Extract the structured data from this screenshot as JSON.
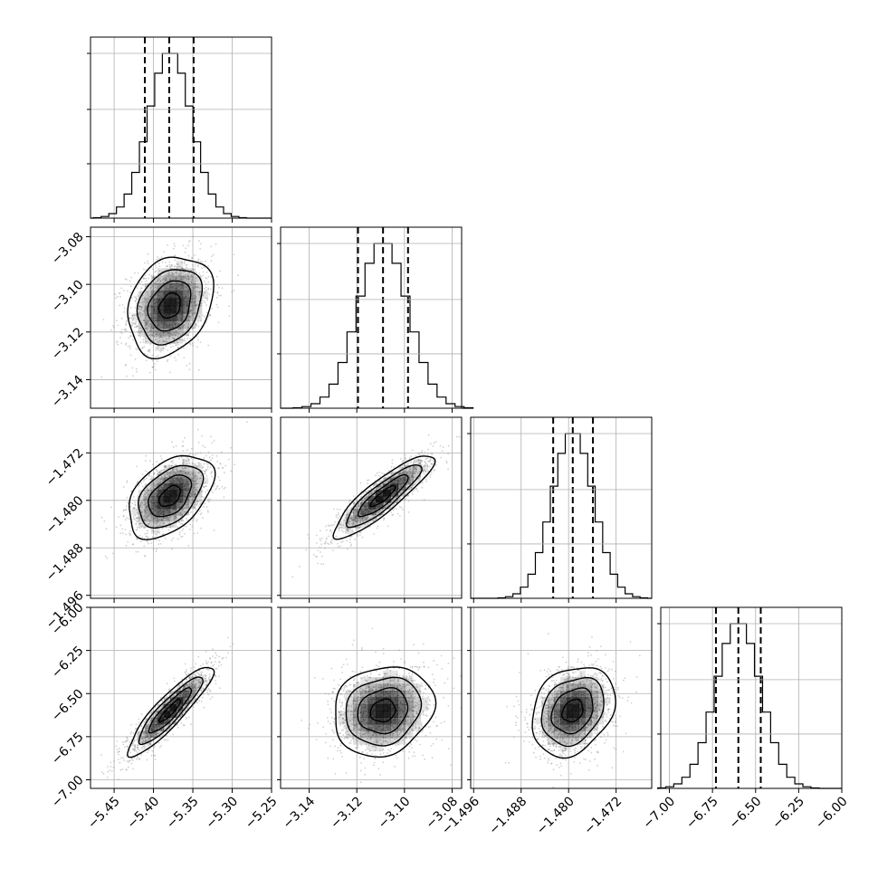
{
  "chart_data": {
    "type": "corner",
    "title": "",
    "grid": true,
    "colors": {
      "line": "#000000",
      "grid": "#b0b0b0",
      "scatter": "#7a7a7a",
      "density": "#000000"
    },
    "parameters": [
      {
        "index": 0,
        "range": [
          -5.48,
          -5.25
        ],
        "ticks": [
          -5.45,
          -5.4,
          -5.35,
          -5.3,
          -5.25
        ],
        "tick_labels": [
          "−5.45",
          "−5.40",
          "−5.35",
          "−5.30",
          "−5.25"
        ],
        "mean": -5.379,
        "sd": 0.027,
        "quantiles": [
          -5.411,
          -5.38,
          -5.349
        ]
      },
      {
        "index": 1,
        "range": [
          -3.152,
          -3.076
        ],
        "ticks": [
          -3.14,
          -3.12,
          -3.1,
          -3.08
        ],
        "tick_labels": [
          "−3.14",
          "−3.12",
          "−3.10",
          "−3.08"
        ],
        "mean": -3.109,
        "sd": 0.0105,
        "quantiles": [
          -3.1195,
          -3.109,
          -3.0985
        ]
      },
      {
        "index": 2,
        "range": [
          -1.4965,
          -1.466
        ],
        "ticks": [
          -1.496,
          -1.488,
          -1.48,
          -1.472
        ],
        "tick_labels": [
          "−1.496",
          "−1.488",
          "−1.480",
          "−1.472"
        ],
        "mean": -1.4793,
        "sd": 0.0035,
        "quantiles": [
          -1.4826,
          -1.4793,
          -1.4759
        ]
      },
      {
        "index": 3,
        "range": [
          -7.05,
          -6.0
        ],
        "ticks": [
          -7.0,
          -6.75,
          -6.5,
          -6.25,
          -6.0
        ],
        "tick_labels": [
          "−7.00",
          "−6.75",
          "−6.50",
          "−6.25",
          "−6.00"
        ],
        "mean": -6.6,
        "sd": 0.13,
        "quantiles": [
          -6.73,
          -6.6,
          -6.47
        ]
      }
    ],
    "correlations": [
      {
        "pair": [
          1,
          0
        ],
        "rho": 0.25
      },
      {
        "pair": [
          2,
          0
        ],
        "rho": 0.45
      },
      {
        "pair": [
          2,
          1
        ],
        "rho": 0.88
      },
      {
        "pair": [
          3,
          0
        ],
        "rho": 0.9
      },
      {
        "pair": [
          3,
          1
        ],
        "rho": 0.15
      },
      {
        "pair": [
          3,
          2
        ],
        "rho": 0.25
      }
    ],
    "contour_levels_sigma": [
      0.5,
      1.0,
      1.5,
      2.0
    ],
    "histogram_bins": 20,
    "scatter_points": 1400
  }
}
